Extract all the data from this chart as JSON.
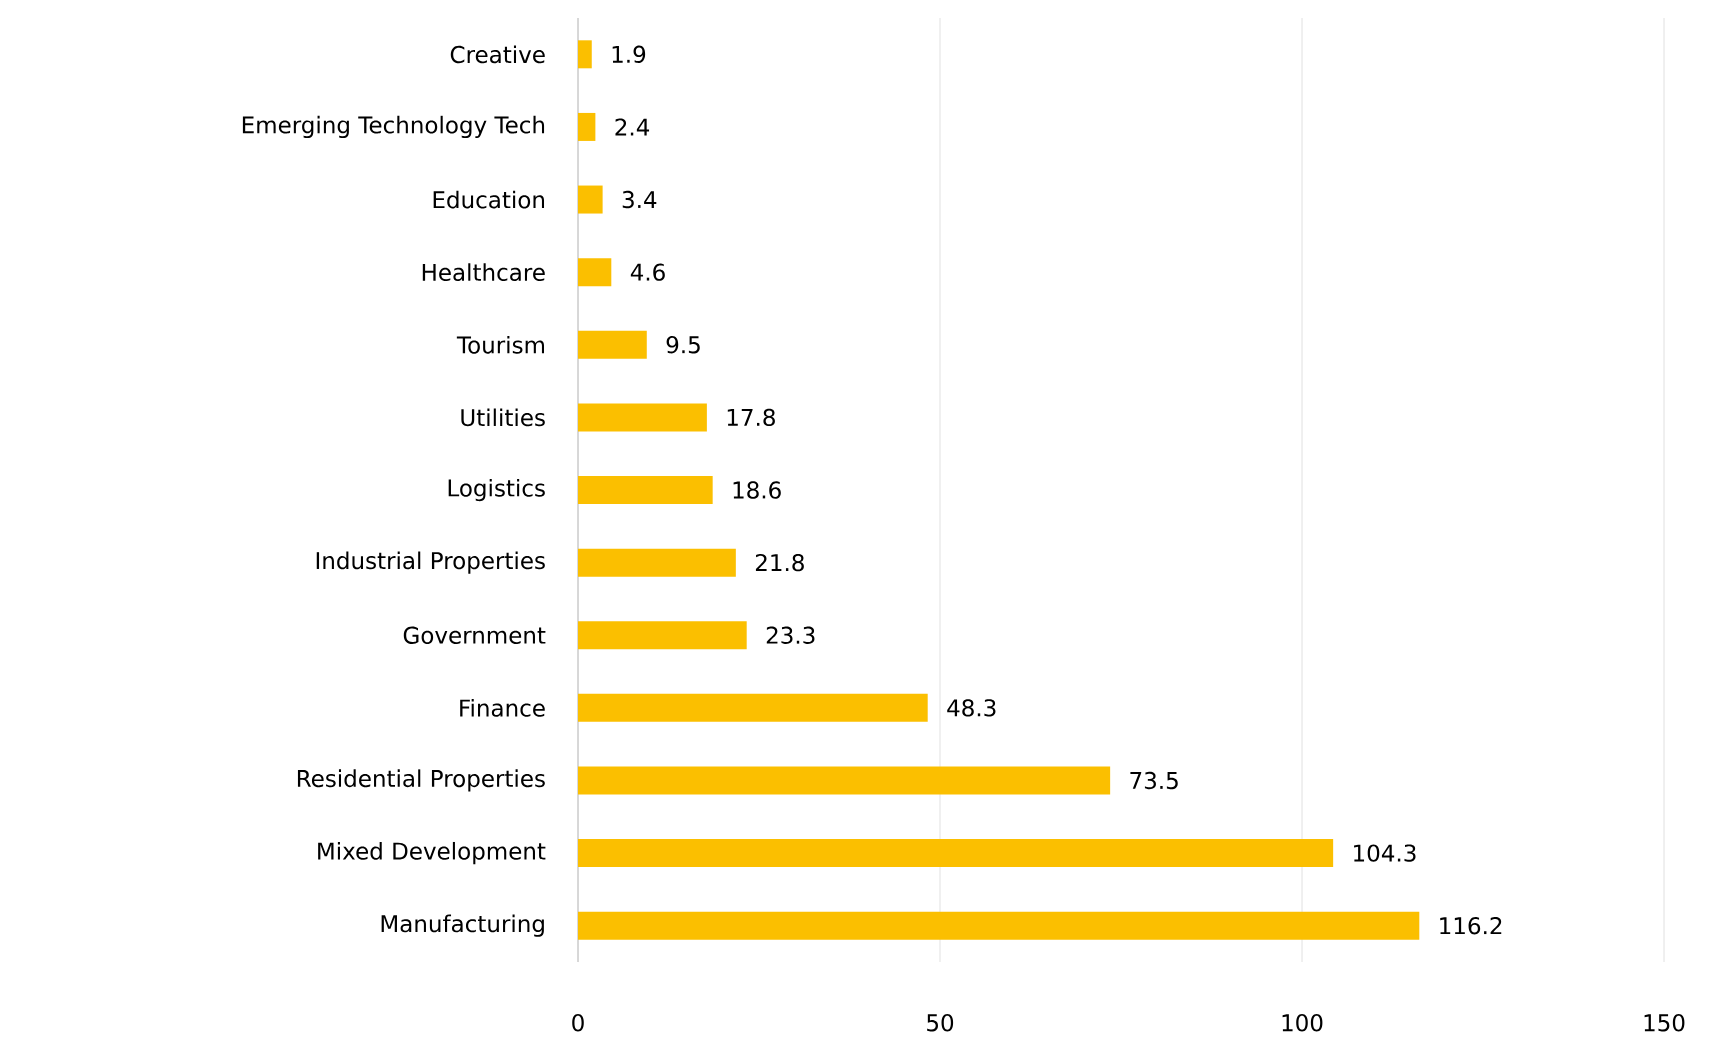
{
  "chart_data": {
    "type": "bar",
    "orientation": "horizontal",
    "categories": [
      "Creative",
      "Emerging Technology Tech",
      "Education",
      "Healthcare",
      "Tourism",
      "Utilities",
      "Logistics",
      "Industrial Properties",
      "Government",
      "Finance",
      "Residential Properties",
      "Mixed Development",
      "Manufacturing"
    ],
    "values": [
      1.9,
      2.4,
      3.4,
      4.6,
      9.5,
      17.8,
      18.6,
      21.8,
      23.3,
      48.3,
      73.5,
      104.3,
      116.2
    ],
    "color": "#fbbf00",
    "xlim": [
      0,
      150
    ],
    "xticks": [
      0,
      50,
      100,
      150
    ],
    "grid": "x",
    "data_labels": true
  }
}
